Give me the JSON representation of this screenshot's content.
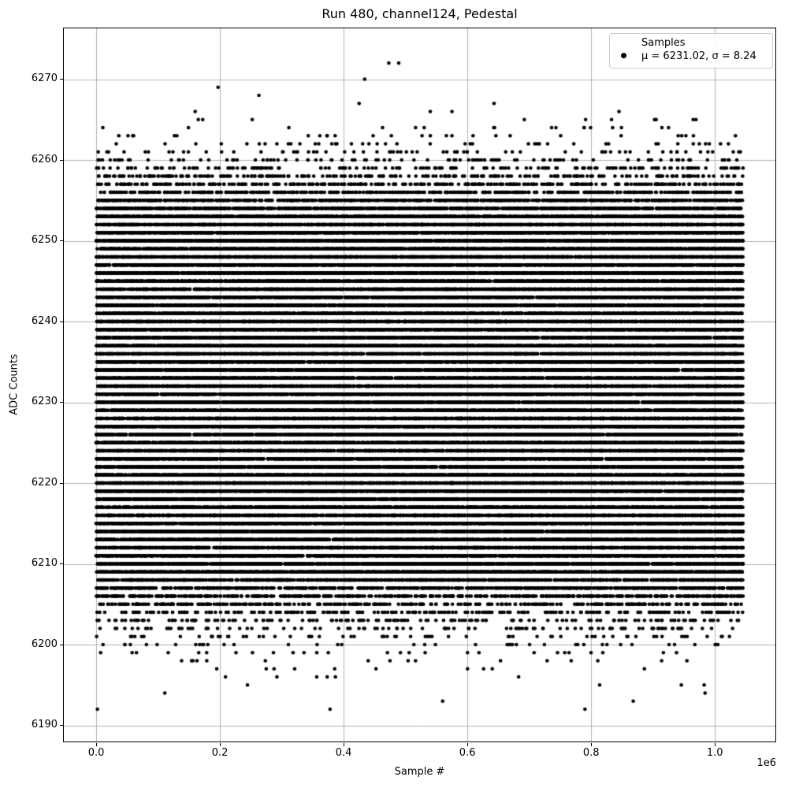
{
  "title": "Run 480, channel124, Pedestal",
  "axes": {
    "xlabel": "Sample #",
    "ylabel": "ADC Counts",
    "offset_text": "1e6",
    "x_ticks": [
      0,
      200000,
      400000,
      600000,
      800000,
      1000000
    ],
    "x_tick_labels": [
      "0.0",
      "0.2",
      "0.4",
      "0.6",
      "0.8",
      "1.0"
    ],
    "y_ticks": [
      6190,
      6200,
      6210,
      6220,
      6230,
      6240,
      6250,
      6260,
      6270
    ],
    "y_tick_labels": [
      "6190",
      "6200",
      "6210",
      "6220",
      "6230",
      "6240",
      "6250",
      "6260",
      "6270"
    ],
    "xlim": [
      -52275,
      1097775
    ],
    "ylim": [
      6188.0,
      6276.3
    ],
    "grid": true
  },
  "legend": {
    "line1": "Samples",
    "line2": "μ = 6231.02, σ = 8.24",
    "position": "upper right"
  },
  "colors": {
    "marker": "#000000",
    "grid": "#b0b0b0",
    "spine": "#000000",
    "text": "#000000",
    "legend_border": "#cccccc",
    "background": "#ffffff"
  },
  "chart_data": {
    "type": "scatter",
    "title": "Run 480, channel124, Pedestal",
    "xlabel": "Sample #",
    "ylabel": "ADC Counts",
    "series_label": "Samples",
    "stats_label": "μ = 6231.02, σ = 8.24",
    "mean": 6231.02,
    "sigma": 8.24,
    "distribution": "gaussian",
    "values_quantized_to_integers": true,
    "x_range": [
      0,
      1045500
    ],
    "adc_min": 6192,
    "adc_max": 6272,
    "xlim": [
      -52275,
      1097775
    ],
    "ylim": [
      6188.0,
      6276.3
    ],
    "grid": true,
    "legend_position": "upper right",
    "marker": {
      "shape": "circle",
      "color": "#000000",
      "radius_px": 2.3
    },
    "explicit_points": {
      "6272": [
        473000,
        489000
      ],
      "6271": [],
      "6270": [
        434000
      ],
      "6269": [
        197000
      ],
      "6268": [
        263000
      ],
      "6267": [
        425000,
        643000
      ],
      "6266": [
        160000,
        540000,
        575000,
        845000
      ],
      "6193": [
        560000,
        868000
      ],
      "6192": [
        2000,
        378000,
        790000
      ]
    }
  }
}
